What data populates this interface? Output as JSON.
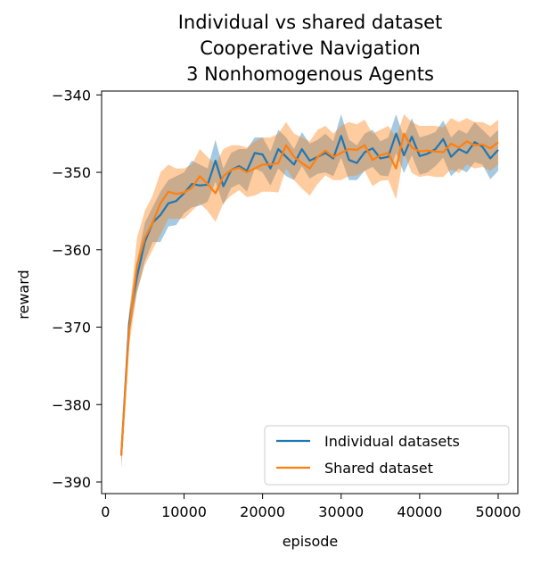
{
  "chart_data": {
    "type": "line",
    "title_lines": [
      "Individual vs shared dataset",
      "Cooperative Navigation",
      "3 Nonhomogenous Agents"
    ],
    "xlabel": "episode",
    "ylabel": "reward",
    "xlim": [
      -500,
      52500
    ],
    "ylim": [
      -391.5,
      -339.5
    ],
    "xticks": [
      0,
      10000,
      20000,
      30000,
      40000,
      50000
    ],
    "yticks": [
      -390,
      -380,
      -370,
      -360,
      -350,
      -340
    ],
    "x_tick_labels": [
      "0",
      "10000",
      "20000",
      "30000",
      "40000",
      "50000"
    ],
    "y_tick_labels": [
      "−390",
      "−380",
      "−370",
      "−360",
      "−350",
      "−340"
    ],
    "legend_position": "lower right",
    "x": [
      2000,
      3000,
      4000,
      5000,
      6000,
      7000,
      8000,
      9000,
      10000,
      11000,
      12000,
      13000,
      14000,
      15000,
      16000,
      17000,
      18000,
      19000,
      20000,
      21000,
      22000,
      23000,
      24000,
      25000,
      26000,
      27000,
      28000,
      29000,
      30000,
      31000,
      32000,
      33000,
      34000,
      35000,
      36000,
      37000,
      38000,
      39000,
      40000,
      41000,
      42000,
      43000,
      44000,
      45000,
      46000,
      47000,
      48000,
      49000,
      50000
    ],
    "series": [
      {
        "name": "Individual datasets",
        "color": "#1f77b4",
        "values": [
          -386.6,
          -369.5,
          -363.5,
          -359.0,
          -356.5,
          -355.5,
          -354.0,
          -353.7,
          -352.7,
          -351.5,
          -351.7,
          -351.6,
          -348.5,
          -351.8,
          -349.7,
          -349.2,
          -349.8,
          -347.5,
          -347.7,
          -349.5,
          -347.0,
          -348.0,
          -349.0,
          -347.0,
          -348.5,
          -348.0,
          -347.5,
          -348.2,
          -345.3,
          -348.4,
          -348.8,
          -347.4,
          -346.9,
          -348.2,
          -348.0,
          -345.0,
          -347.8,
          -345.4,
          -347.9,
          -347.6,
          -347.0,
          -345.7,
          -348.0,
          -347.0,
          -347.5,
          -346.1,
          -346.7,
          -348.2,
          -347.1
        ],
        "upper": [
          -385.2,
          -368.0,
          -361.5,
          -356.5,
          -354.5,
          -352.5,
          -351.0,
          -350.5,
          -350.0,
          -348.5,
          -349.0,
          -349.5,
          -345.8,
          -349.5,
          -347.5,
          -347.0,
          -347.0,
          -345.5,
          -345.5,
          -347.3,
          -344.5,
          -345.5,
          -347.0,
          -344.8,
          -346.3,
          -345.8,
          -345.0,
          -346.0,
          -342.5,
          -345.8,
          -346.5,
          -345.0,
          -344.5,
          -346.0,
          -345.5,
          -342.5,
          -345.5,
          -343.0,
          -345.5,
          -345.2,
          -344.8,
          -343.3,
          -345.5,
          -344.5,
          -345.0,
          -343.5,
          -344.5,
          -345.5,
          -344.5
        ],
        "lower": [
          -388.2,
          -371.0,
          -365.5,
          -361.5,
          -359.0,
          -359.0,
          -357.0,
          -356.8,
          -355.3,
          -354.5,
          -354.3,
          -353.8,
          -351.2,
          -354.2,
          -352.0,
          -351.5,
          -352.5,
          -349.5,
          -350.0,
          -351.7,
          -349.5,
          -350.5,
          -351.0,
          -349.2,
          -350.8,
          -350.2,
          -350.0,
          -350.5,
          -348.1,
          -351.0,
          -351.0,
          -349.8,
          -349.3,
          -350.4,
          -350.5,
          -347.5,
          -350.1,
          -347.8,
          -350.3,
          -350.0,
          -349.2,
          -348.1,
          -350.5,
          -349.5,
          -350.0,
          -348.7,
          -349.0,
          -350.9,
          -349.8
        ]
      },
      {
        "name": "Shared dataset",
        "color": "#ff7f0e",
        "values": [
          -386.6,
          -370.5,
          -362.0,
          -358.5,
          -356.5,
          -354.0,
          -352.5,
          -352.8,
          -352.6,
          -352.0,
          -350.5,
          -351.5,
          -352.7,
          -350.5,
          -349.7,
          -349.4,
          -350.0,
          -349.5,
          -349.0,
          -349.0,
          -348.8,
          -346.5,
          -348.0,
          -348.8,
          -349.5,
          -348.0,
          -347.2,
          -348.0,
          -347.5,
          -347.0,
          -347.1,
          -346.5,
          -348.4,
          -347.8,
          -347.5,
          -349.5,
          -345.0,
          -346.8,
          -347.3,
          -347.2,
          -347.3,
          -347.4,
          -346.3,
          -346.8,
          -346.0,
          -346.5,
          -346.4,
          -346.9,
          -346.1
        ],
        "upper": [
          -385.0,
          -368.5,
          -358.5,
          -355.0,
          -353.0,
          -350.0,
          -349.0,
          -349.5,
          -349.5,
          -349.0,
          -347.0,
          -348.0,
          -349.0,
          -347.0,
          -346.5,
          -346.5,
          -346.8,
          -346.0,
          -345.5,
          -345.5,
          -345.0,
          -343.5,
          -345.0,
          -345.5,
          -346.0,
          -344.5,
          -344.0,
          -345.0,
          -344.0,
          -343.5,
          -343.8,
          -343.2,
          -345.0,
          -344.5,
          -344.0,
          -345.5,
          -342.5,
          -343.5,
          -344.0,
          -344.0,
          -344.0,
          -344.2,
          -343.0,
          -343.5,
          -343.0,
          -343.5,
          -343.5,
          -344.0,
          -343.2
        ],
        "lower": [
          -388.2,
          -372.5,
          -365.5,
          -362.0,
          -360.0,
          -358.0,
          -356.0,
          -356.0,
          -356.0,
          -355.0,
          -354.0,
          -355.0,
          -356.4,
          -354.0,
          -353.0,
          -352.3,
          -353.2,
          -353.0,
          -352.5,
          -352.5,
          -352.6,
          -349.5,
          -351.0,
          -352.1,
          -353.0,
          -351.5,
          -350.4,
          -351.0,
          -351.0,
          -350.5,
          -350.4,
          -349.8,
          -351.8,
          -351.1,
          -351.0,
          -353.5,
          -347.5,
          -350.1,
          -350.6,
          -350.4,
          -350.6,
          -350.6,
          -349.6,
          -350.1,
          -349.0,
          -349.5,
          -349.3,
          -349.8,
          -349.0
        ]
      }
    ]
  }
}
